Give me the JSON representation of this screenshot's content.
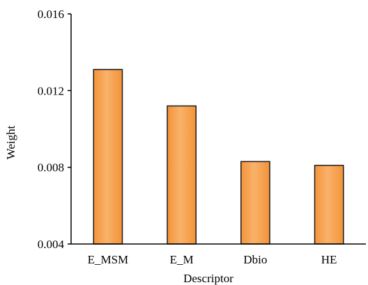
{
  "chart_data": {
    "type": "bar",
    "categories": [
      "E_MSM",
      "E_M",
      "Dbio",
      "HE"
    ],
    "values": [
      0.0131,
      0.0112,
      0.0083,
      0.0081
    ],
    "xlabel": "Descriptor",
    "ylabel": "Weight",
    "ylim": [
      0.004,
      0.016
    ],
    "yticks": [
      "0.004",
      "0.008",
      "0.012",
      "0.016"
    ],
    "grid": false,
    "colors": {
      "bar_fill": "#f39339",
      "bar_highlight": "#f9b26a",
      "bar_stroke": "#1a1a1a",
      "axis": "#000000"
    }
  }
}
